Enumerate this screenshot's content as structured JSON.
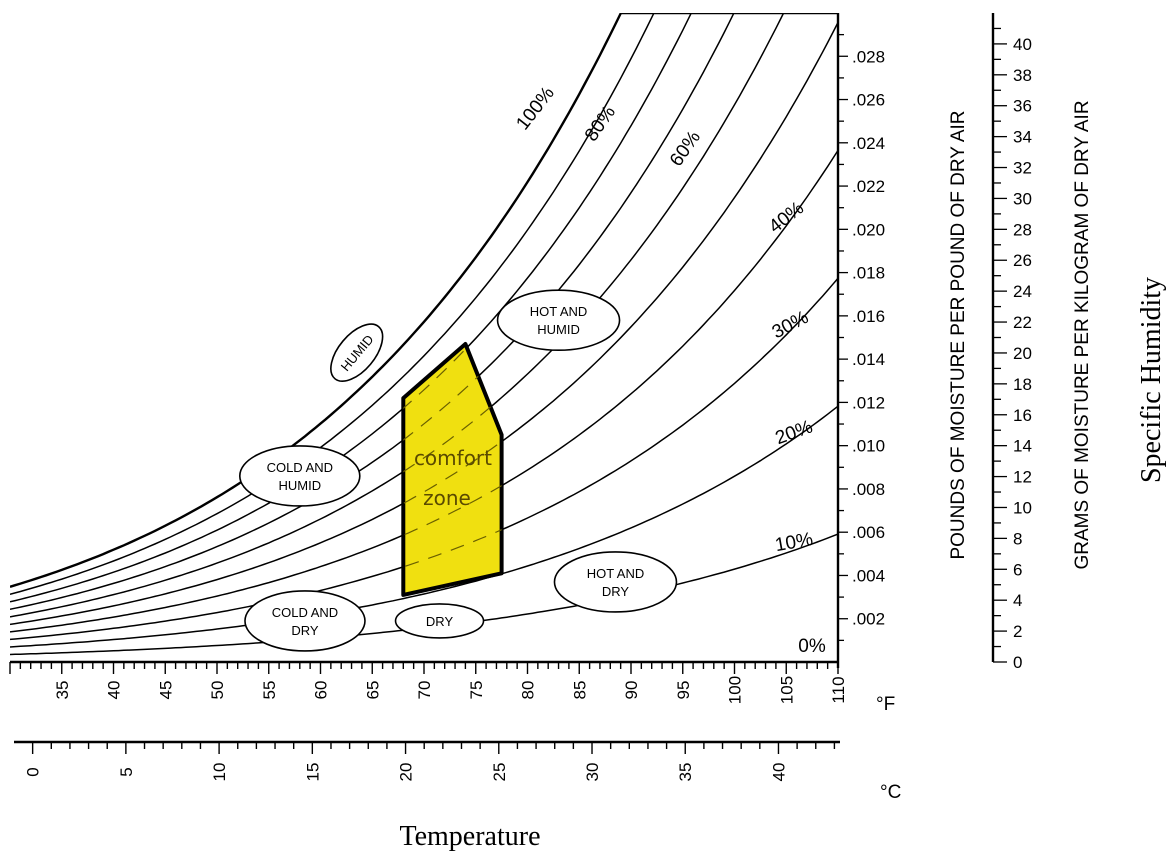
{
  "chart_data": {
    "type": "line",
    "title": "",
    "xlabel": "Temperature",
    "ylabel": "Specific Humidity",
    "x_axis_f": {
      "unit": "°F",
      "ticks": [
        "35",
        "40",
        "45",
        "50",
        "55",
        "60",
        "65",
        "70",
        "75",
        "80",
        "85",
        "90",
        "95",
        "100",
        "105",
        "110"
      ],
      "range": [
        30,
        110
      ]
    },
    "x_axis_c": {
      "unit": "°C",
      "ticks": [
        "0",
        "5",
        "10",
        "15",
        "20",
        "25",
        "30",
        "35",
        "40"
      ],
      "range": [
        -1,
        43.3
      ]
    },
    "y_axis_lb": {
      "label": "POUNDS OF MOISTURE PER POUND OF DRY AIR",
      "ticks": [
        ".002",
        ".004",
        ".006",
        ".008",
        ".010",
        ".012",
        ".014",
        ".016",
        ".018",
        ".020",
        ".022",
        ".024",
        ".026",
        ".028"
      ],
      "range": [
        0,
        0.03
      ]
    },
    "y_axis_g": {
      "label": "GRAMS OF MOISTURE PER KILOGRAM OF DRY AIR",
      "ticks": [
        "0",
        "2",
        "4",
        "6",
        "8",
        "10",
        "12",
        "14",
        "16",
        "18",
        "20",
        "22",
        "24",
        "26",
        "28",
        "30",
        "32",
        "34",
        "36",
        "38",
        "40"
      ],
      "range": [
        0,
        42
      ]
    },
    "rh_labels": [
      "100%",
      "80%",
      "60%",
      "40%",
      "30%",
      "20%",
      "10%",
      "0%"
    ],
    "series": [
      {
        "name": "100%",
        "rh": 1.0
      },
      {
        "name": "90%",
        "rh": 0.9
      },
      {
        "name": "80%",
        "rh": 0.8
      },
      {
        "name": "70%",
        "rh": 0.7
      },
      {
        "name": "60%",
        "rh": 0.6
      },
      {
        "name": "50%",
        "rh": 0.5
      },
      {
        "name": "40%",
        "rh": 0.4
      },
      {
        "name": "30%",
        "rh": 0.3
      },
      {
        "name": "20%",
        "rh": 0.2
      },
      {
        "name": "10%",
        "rh": 0.1
      },
      {
        "name": "0%",
        "rh": 0.0
      }
    ],
    "comfort_zone": {
      "label_line1": "comfort",
      "label_line2": "zone",
      "color": "#f0e010",
      "polygon": [
        [
          68,
          0.0031
        ],
        [
          68,
          0.0122
        ],
        [
          74,
          0.0147
        ],
        [
          77.5,
          0.0105
        ],
        [
          77.5,
          0.0041
        ]
      ]
    },
    "regions": [
      {
        "line1": "HUMID",
        "line2": "",
        "x": 63.5,
        "y": 0.0143
      },
      {
        "line1": "HOT AND",
        "line2": "HUMID",
        "x": 83,
        "y": 0.0158
      },
      {
        "line1": "COLD AND",
        "line2": "HUMID",
        "x": 58,
        "y": 0.0086
      },
      {
        "line1": "HOT AND",
        "line2": "DRY",
        "x": 88.5,
        "y": 0.0037
      },
      {
        "line1": "COLD AND",
        "line2": "DRY",
        "x": 58.5,
        "y": 0.0019
      },
      {
        "line1": "DRY",
        "line2": "",
        "x": 71.5,
        "y": 0.0019
      }
    ]
  }
}
